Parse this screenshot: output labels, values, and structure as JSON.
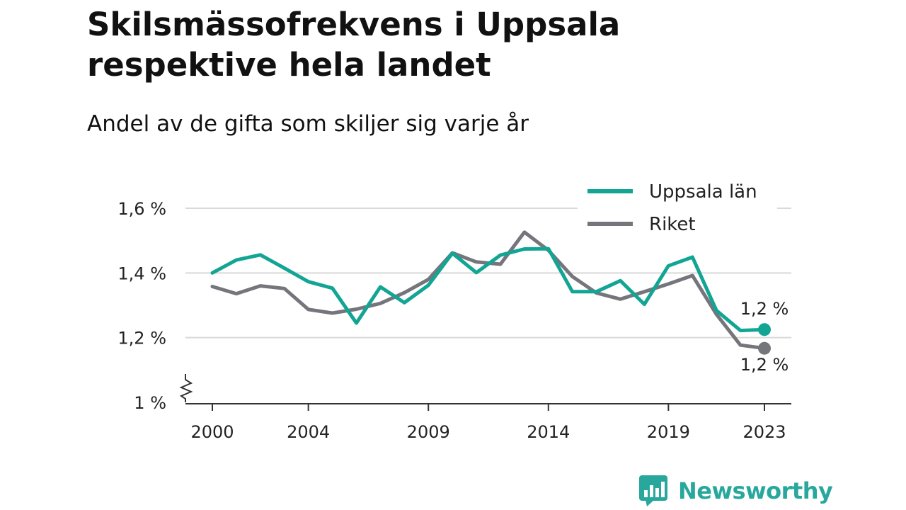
{
  "title": "Skilsmässofrekvens i Uppsala respektive hela landet",
  "subtitle": "Andel av de gifta som skiljer sig varje år",
  "brand": {
    "name": "Newsworthy"
  },
  "colors": {
    "uppsala": "#12a594",
    "riket": "#75757c",
    "grid": "#d9d9d9",
    "axis": "#333333"
  },
  "chart_data": {
    "type": "line",
    "x": [
      2000,
      2001,
      2002,
      2003,
      2004,
      2005,
      2006,
      2007,
      2008,
      2009,
      2010,
      2011,
      2012,
      2013,
      2014,
      2015,
      2016,
      2017,
      2018,
      2019,
      2020,
      2021,
      2022,
      2023
    ],
    "series": [
      {
        "name": "Uppsala län",
        "color": "#12a594",
        "values": [
          1.4,
          1.44,
          1.456,
          1.415,
          1.373,
          1.353,
          1.245,
          1.357,
          1.308,
          1.362,
          1.461,
          1.401,
          1.455,
          1.474,
          1.475,
          1.342,
          1.342,
          1.376,
          1.303,
          1.422,
          1.449,
          1.284,
          1.222,
          1.225
        ],
        "end_label": "1,2 %"
      },
      {
        "name": "Riket",
        "color": "#75757c",
        "values": [
          1.358,
          1.336,
          1.36,
          1.352,
          1.287,
          1.276,
          1.288,
          1.306,
          1.339,
          1.38,
          1.462,
          1.434,
          1.427,
          1.526,
          1.47,
          1.389,
          1.338,
          1.319,
          1.342,
          1.366,
          1.392,
          1.272,
          1.177,
          1.167
        ],
        "end_label": "1,2 %"
      }
    ],
    "x_ticks": [
      2000,
      2004,
      2009,
      2014,
      2019,
      2023
    ],
    "x_tick_labels": [
      "2000",
      "2004",
      "2009",
      "2014",
      "2019",
      "2023"
    ],
    "y_ticks": [
      1.0,
      1.2,
      1.4,
      1.6
    ],
    "y_tick_labels": [
      "1 %",
      "1,2 %",
      "1,4 %",
      "1,6 %"
    ],
    "ylim": [
      1.0,
      1.6
    ],
    "y_axis_break": true,
    "grid": true,
    "legend_position": "top-right"
  }
}
